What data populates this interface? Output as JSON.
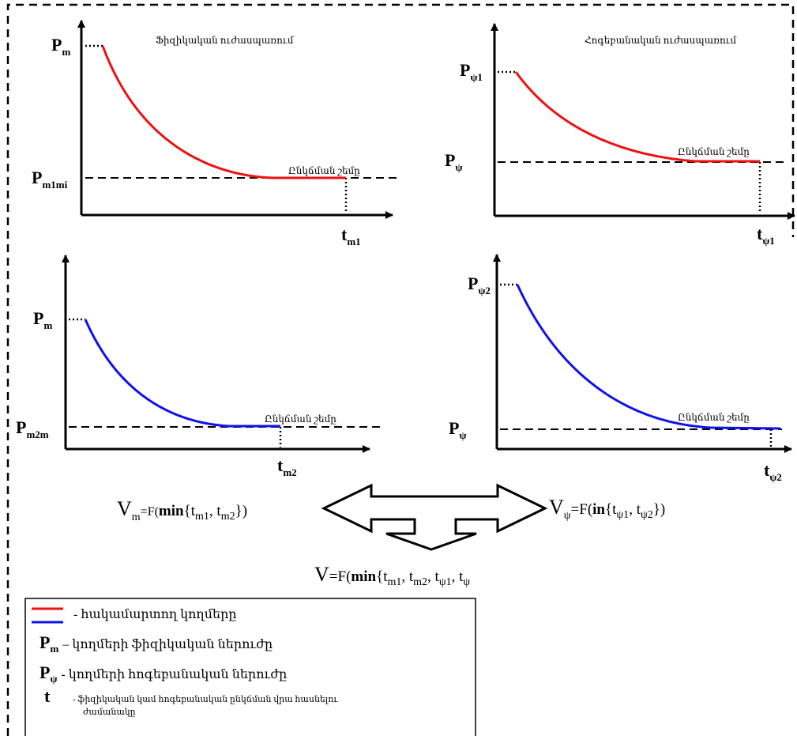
{
  "colors": {
    "opponent_1": "#ee1111",
    "opponent_2": "#1111ee",
    "ink": "#000000"
  },
  "titles": {
    "physical": "Ֆիզիկական ուժասպառում",
    "psych": "Հոգեբանական ուժասպառում"
  },
  "threshold_label": "Ընկճման շեմը",
  "panels": {
    "a": {
      "p_top": "P",
      "p_top_sub": "m",
      "p_bot": "P",
      "p_bot_sub": "m1mi",
      "t": "t",
      "t_sub": "m1"
    },
    "b": {
      "p_top": "P",
      "p_top_sub": "ψ1",
      "p_bot": "P",
      "p_bot_sub": "ψ",
      "t": "t",
      "t_sub": "ψ1"
    },
    "c": {
      "p_top": "P",
      "p_top_sub": "m",
      "p_bot": "P",
      "p_bot_sub": "m2m",
      "t": "t",
      "t_sub": "m2"
    },
    "d": {
      "p_top": "P",
      "p_top_sub": "ψ2",
      "p_bot": "P",
      "p_bot_sub": "ψ",
      "t": "t",
      "t_sub": "ψ2"
    }
  },
  "formulas": {
    "vm": {
      "v": "V",
      "v_sub": "m",
      "eq": "=F(",
      "fn": "min",
      "open": "{t",
      "a_sub": "m1",
      "mid": ", t",
      "b_sub": "m2",
      "close": "})"
    },
    "vpsi": {
      "v": "V",
      "v_sub": "ψ",
      "eq": "=F(",
      "fn": "in",
      "open": "{t",
      "a_sub": "ψ1",
      "mid": ", t",
      "b_sub": "ψ2",
      "close": "})"
    },
    "v": {
      "v": "V",
      "eq": "=F(",
      "fn": "min",
      "open": "{t",
      "a_sub": "m1",
      "s1": ", t",
      "b_sub": "m2",
      "s2": ", t",
      "c_sub": "ψ1",
      "s3": ", t",
      "d_sub": "ψ"
    }
  },
  "legend": {
    "line_desc": "- հակամարտող կողմերը",
    "pm_symbol": "P",
    "pm_sub": "m",
    "pm_desc": "– կողմերի ֆիզիկական ներուժը",
    "ppsi_symbol": "P",
    "ppsi_sub": "ψ",
    "ppsi_desc": "- կողմերի հոգեբանական ներուժը",
    "t_symbol": "t",
    "t_desc_1": "-  ֆիզիկական կամ հոգեբանական ընկճման վրա հասնելու",
    "t_desc_2": "ժամանակը"
  }
}
